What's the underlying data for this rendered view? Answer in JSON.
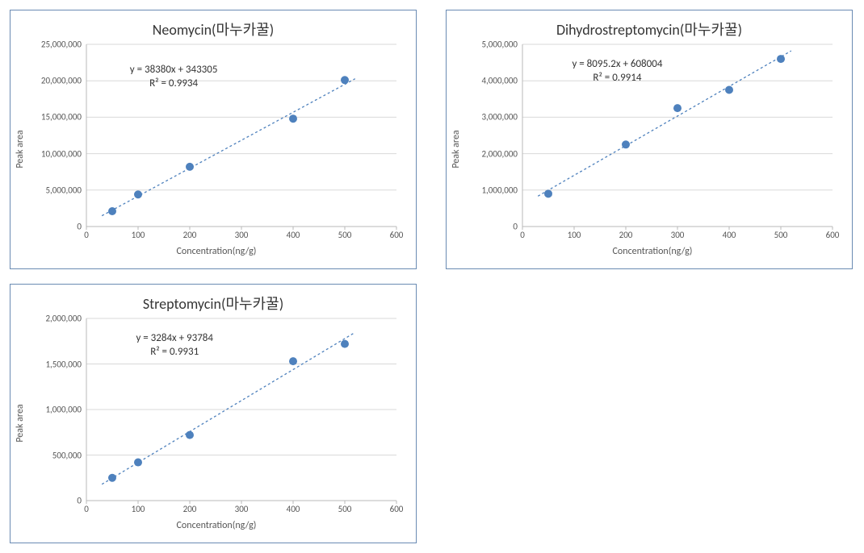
{
  "layout": {
    "panel_border_color": "#6a8bb3",
    "background_color": "#ffffff"
  },
  "charts": [
    {
      "title": "Neomycin(마누카꿀)",
      "type": "scatter-with-trendline",
      "xlabel": "Concentration(ng/g)",
      "ylabel": "Peak area",
      "xlim": [
        0,
        600
      ],
      "xtick_step": 100,
      "ylim": [
        0,
        25000000
      ],
      "ytick_step": 5000000,
      "equation": "y = 38380x + 343305",
      "r2": "R² = 0.9934",
      "eq_pos": {
        "left_pct": 14,
        "top_pct": 10
      },
      "series": {
        "x": [
          50,
          100,
          200,
          400,
          500
        ],
        "y": [
          2100000,
          4400000,
          8200000,
          14800000,
          20100000
        ]
      },
      "marker_color": "#4e81bd",
      "marker_radius": 5,
      "trendline_color": "#4e81bd",
      "trendline_dash": "3,3",
      "trendline_width": 1.3,
      "axis_color": "#b9b9b9",
      "grid_color": "#d9d9d9",
      "title_fontsize": 18,
      "label_fontsize": 12,
      "tick_fontsize": 11
    },
    {
      "title": "Dihydrostreptomycin(마누카꿀)",
      "type": "scatter-with-trendline",
      "xlabel": "Concentration(ng/g)",
      "ylabel": "Peak area",
      "xlim": [
        0,
        600
      ],
      "xtick_step": 100,
      "ylim": [
        0,
        5000000
      ],
      "ytick_step": 1000000,
      "equation": "y = 8095.2x + 608004",
      "r2": "R² = 0.9914",
      "eq_pos": {
        "left_pct": 16,
        "top_pct": 7
      },
      "series": {
        "x": [
          50,
          200,
          300,
          400,
          500
        ],
        "y": [
          900000,
          2250000,
          3250000,
          3750000,
          4600000
        ]
      },
      "marker_color": "#4e81bd",
      "marker_radius": 5,
      "trendline_color": "#4e81bd",
      "trendline_dash": "3,3",
      "trendline_width": 1.3,
      "axis_color": "#b9b9b9",
      "grid_color": "#d9d9d9",
      "title_fontsize": 18,
      "label_fontsize": 12,
      "tick_fontsize": 11
    },
    {
      "title": "Streptomycin(마누카꿀)",
      "type": "scatter-with-trendline",
      "xlabel": "Concentration(ng/g)",
      "ylabel": "Peak area",
      "xlim": [
        0,
        600
      ],
      "xtick_step": 100,
      "ylim": [
        0,
        2000000
      ],
      "ytick_step": 500000,
      "equation": "y = 3284x + 93784",
      "r2": "R² = 0.9931",
      "eq_pos": {
        "left_pct": 16,
        "top_pct": 7
      },
      "series": {
        "x": [
          50,
          100,
          200,
          400,
          500
        ],
        "y": [
          250000,
          420000,
          720000,
          1530000,
          1720000
        ]
      },
      "marker_color": "#4e81bd",
      "marker_radius": 5,
      "trendline_color": "#4e81bd",
      "trendline_dash": "3,3",
      "trendline_width": 1.3,
      "axis_color": "#b9b9b9",
      "grid_color": "#d9d9d9",
      "title_fontsize": 18,
      "label_fontsize": 12,
      "tick_fontsize": 11
    }
  ]
}
